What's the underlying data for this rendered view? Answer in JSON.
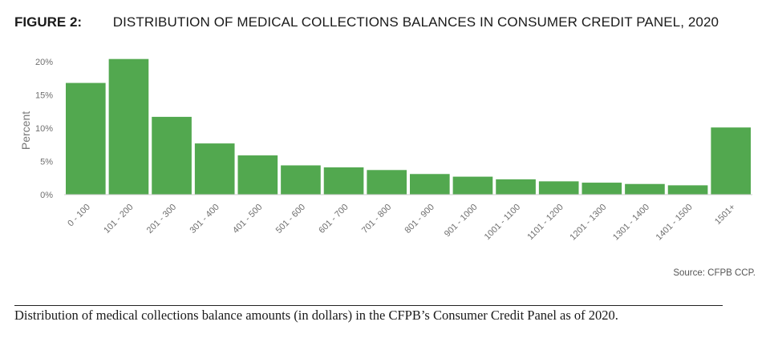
{
  "figure": {
    "label": "FIGURE 2:",
    "title": "DISTRIBUTION OF MEDICAL COLLECTIONS BALANCES IN CONSUMER CREDIT PANEL, 2020"
  },
  "source": "Source: CFPB CCP.",
  "caption": "Distribution of medical collections balance amounts (in dollars) in the CFPB’s Consumer Credit Panel as of 2020.",
  "colors": {
    "bar": "#52a84f",
    "axis": "#cccccc"
  },
  "chart_data": {
    "type": "bar",
    "title": "",
    "xlabel": "",
    "ylabel": "Percent",
    "ylim": [
      0,
      20
    ],
    "yticks": [
      0,
      5,
      10,
      15,
      20
    ],
    "ytick_labels": [
      "0%",
      "5%",
      "10%",
      "15%",
      "20%"
    ],
    "grid": false,
    "categories": [
      "0 - 100",
      "101 - 200",
      "201 - 300",
      "301 - 400",
      "401 - 500",
      "501 - 600",
      "601 - 700",
      "701 - 800",
      "801 - 900",
      "901 - 1000",
      "1001 - 1100",
      "1101 - 1200",
      "1201 - 1300",
      "1301 - 1400",
      "1401 - 1500",
      "1501+"
    ],
    "values": [
      16.8,
      20.4,
      11.7,
      7.7,
      5.9,
      4.4,
      4.1,
      3.7,
      3.1,
      2.7,
      2.3,
      2.0,
      1.8,
      1.6,
      1.4,
      10.1
    ]
  }
}
